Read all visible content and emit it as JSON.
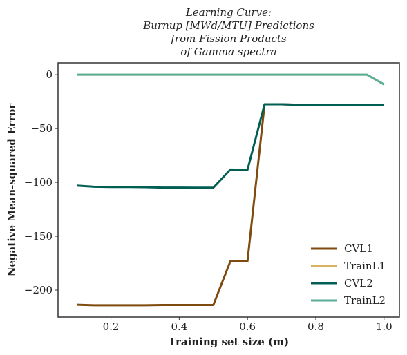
{
  "chart_data": {
    "type": "line",
    "title_lines": [
      "Learning Curve:",
      "Burnup [MWd/MTU] Predictions",
      "from Fission Products",
      "of Gamma spectra"
    ],
    "xlabel": "Training set size (m)",
    "ylabel": "Negative Mean-squared Error",
    "xlim": [
      0.045,
      1.045
    ],
    "ylim": [
      -225,
      11
    ],
    "xticks": [
      0.2,
      0.4,
      0.6,
      0.8,
      1.0
    ],
    "xtick_labels": [
      "0.2",
      "0.4",
      "0.6",
      "0.8",
      "1.0"
    ],
    "yticks": [
      0,
      -50,
      -100,
      -150,
      -200
    ],
    "ytick_labels": [
      "0",
      "−50",
      "−100",
      "−150",
      "−200"
    ],
    "legend_position": "lower-right",
    "grid": false,
    "series": [
      {
        "name": "CVL1",
        "color": "#7f4b0f",
        "x": [
          0.1,
          0.15,
          0.2,
          0.25,
          0.3,
          0.35,
          0.4,
          0.45,
          0.5,
          0.55,
          0.6,
          0.65,
          0.7,
          0.75,
          0.8,
          0.85,
          0.9,
          0.95,
          1.0
        ],
        "y": [
          -213.5,
          -214,
          -214,
          -214,
          -214,
          -213.8,
          -213.8,
          -213.8,
          -213.8,
          -173,
          -173,
          -27.5,
          -27.5,
          -28,
          -28,
          -28,
          -28,
          -28,
          -28
        ]
      },
      {
        "name": "TrainL1",
        "color": "#d8b25f",
        "x": [
          0.1,
          0.15,
          0.2,
          0.25,
          0.3,
          0.35,
          0.4,
          0.45,
          0.5,
          0.55,
          0.6,
          0.65,
          0.7,
          0.75,
          0.8,
          0.85,
          0.9,
          0.95,
          1.0
        ],
        "y": [
          0,
          0,
          0,
          0,
          0,
          0,
          0,
          0,
          0,
          0,
          0,
          0,
          0,
          0,
          0,
          0,
          0,
          0,
          -9
        ]
      },
      {
        "name": "CVL2",
        "color": "#005e52",
        "x": [
          0.1,
          0.15,
          0.2,
          0.25,
          0.3,
          0.35,
          0.4,
          0.45,
          0.5,
          0.55,
          0.6,
          0.65,
          0.7,
          0.75,
          0.8,
          0.85,
          0.9,
          0.95,
          1.0
        ],
        "y": [
          -103,
          -104,
          -104.3,
          -104.3,
          -104.4,
          -104.8,
          -104.8,
          -104.9,
          -104.9,
          -88,
          -88.3,
          -27.5,
          -27.5,
          -28,
          -28,
          -28,
          -28,
          -28,
          -28
        ]
      },
      {
        "name": "TrainL2",
        "color": "#5aae98",
        "x": [
          0.1,
          0.15,
          0.2,
          0.25,
          0.3,
          0.35,
          0.4,
          0.45,
          0.5,
          0.55,
          0.6,
          0.65,
          0.7,
          0.75,
          0.8,
          0.85,
          0.9,
          0.95,
          1.0
        ],
        "y": [
          0,
          0,
          0,
          0,
          0,
          0,
          0,
          0,
          0,
          0,
          0,
          0,
          0,
          0,
          0,
          0,
          0,
          0,
          -9
        ]
      }
    ]
  }
}
